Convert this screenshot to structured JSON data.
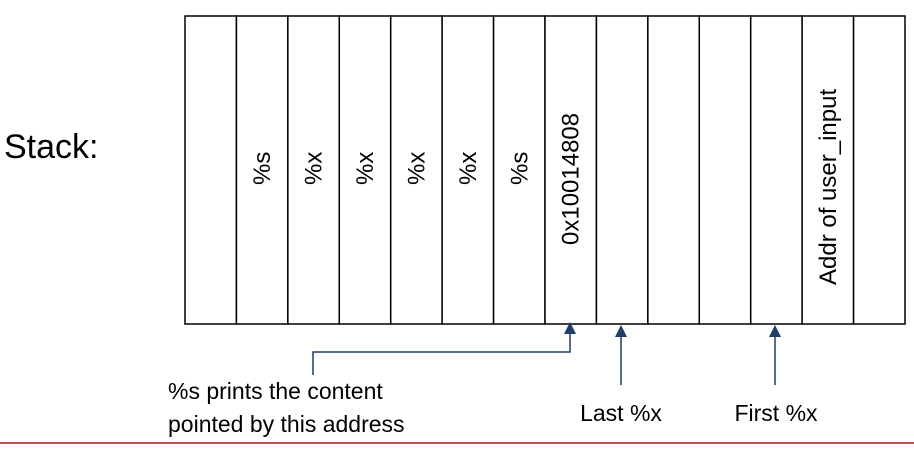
{
  "title": "Stack:",
  "cells": [
    "",
    "%s",
    "%x",
    "%x",
    "%x",
    "%x",
    "%s",
    "0x10014808",
    "",
    "",
    "",
    "",
    "Addr of user_input",
    ""
  ],
  "annotations": {
    "s_note_line1": "%s prints the content",
    "s_note_line2": "pointed by this address",
    "last_x": "Last %x",
    "first_x": "First %x"
  },
  "colors": {
    "cell_border": "#000000",
    "arrow": "#1f3f66",
    "text": "#000000",
    "bottom_rule": "#c0504d"
  }
}
